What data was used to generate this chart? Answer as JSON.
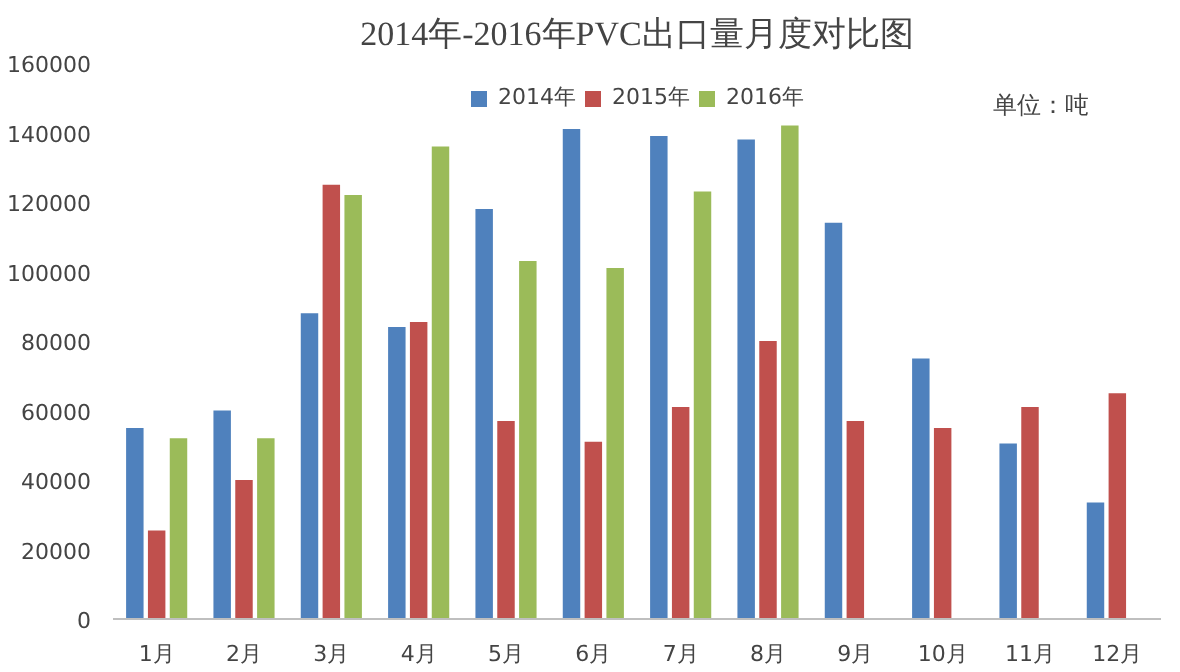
{
  "chart_data": {
    "type": "bar",
    "title": "2014年-2016年PVC出口量月度对比图",
    "categories": [
      "1月",
      "2月",
      "3月",
      "4月",
      "5月",
      "6月",
      "7月",
      "8月",
      "9月",
      "10月",
      "11月",
      "12月"
    ],
    "series": [
      {
        "name": "2014年",
        "color": "#4f81bd",
        "values": [
          55000,
          60000,
          88000,
          84000,
          118000,
          141000,
          139000,
          138000,
          114000,
          75000,
          50500,
          33500
        ]
      },
      {
        "name": "2015年",
        "color": "#c0504d",
        "values": [
          25500,
          40000,
          125000,
          85500,
          57000,
          51000,
          61000,
          80000,
          57000,
          55000,
          61000,
          65000
        ]
      },
      {
        "name": "2016年",
        "color": "#9bbb59",
        "values": [
          52000,
          52000,
          122000,
          136000,
          103000,
          101000,
          123000,
          142000,
          null,
          null,
          null,
          null
        ]
      }
    ],
    "ylim": [
      0,
      160000
    ],
    "yticks": [
      0,
      20000,
      40000,
      60000,
      80000,
      100000,
      120000,
      140000,
      160000
    ],
    "annotations": [
      "单位：吨"
    ],
    "legend": "top",
    "grid": false
  }
}
